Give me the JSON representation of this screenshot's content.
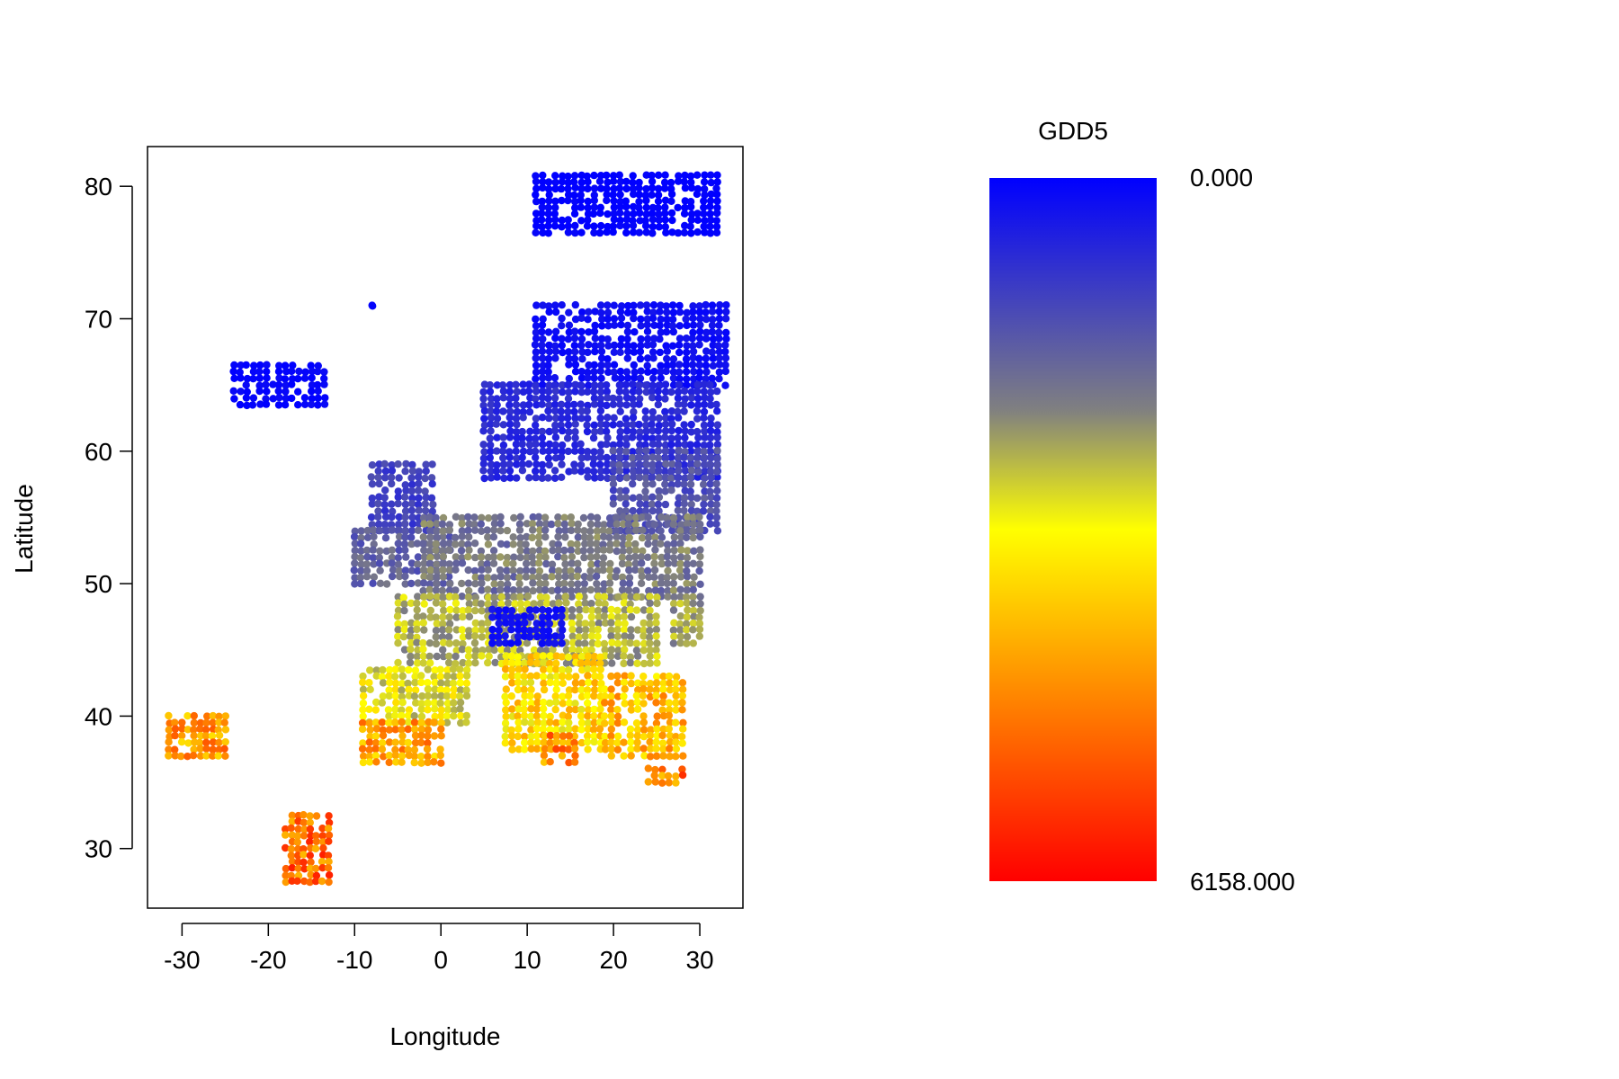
{
  "chart_data": [
    {
      "type": "scatter",
      "title": "",
      "xlabel": "Longitude",
      "ylabel": "Latitude",
      "xlim": [
        -34,
        35
      ],
      "ylim": [
        25.5,
        83
      ],
      "xticks": [
        -30,
        -20,
        -10,
        0,
        10,
        20,
        30
      ],
      "yticks": [
        30,
        40,
        50,
        60,
        70,
        80
      ],
      "grid": false,
      "legend": "none",
      "color_variable": "GDD5",
      "regions": [
        {
          "lon": [
            11,
            32
          ],
          "lat": [
            76.5,
            80.8
          ],
          "gdd5": 0
        },
        {
          "lon": [
            -24,
            -13.5
          ],
          "lat": [
            63.5,
            66.5
          ],
          "gdd5": 60
        },
        {
          "lon": [
            -8.6,
            -8.0
          ],
          "lat": [
            71,
            71
          ],
          "gdd5": 0
        },
        {
          "lon": [
            11,
            33
          ],
          "lat": [
            65,
            71
          ],
          "gdd5": 200
        },
        {
          "lon": [
            5,
            32
          ],
          "lat": [
            58,
            65
          ],
          "gdd5": 650
        },
        {
          "lon": [
            20,
            32
          ],
          "lat": [
            54,
            60
          ],
          "gdd5": 1300
        },
        {
          "lon": [
            -8,
            -1
          ],
          "lat": [
            54,
            59
          ],
          "gdd5": 1000
        },
        {
          "lon": [
            -10,
            1
          ],
          "lat": [
            50,
            54
          ],
          "gdd5": 1550
        },
        {
          "lon": [
            -2,
            30
          ],
          "lat": [
            49,
            55
          ],
          "gdd5": 1850
        },
        {
          "lon": [
            -5,
            25
          ],
          "lat": [
            44,
            49
          ],
          "gdd5": 2450
        },
        {
          "lon": [
            27,
            30
          ],
          "lat": [
            45.5,
            48.5
          ],
          "gdd5": 2300
        },
        {
          "lon": [
            6,
            14
          ],
          "lat": [
            45.5,
            48
          ],
          "gdd5": 250
        },
        {
          "lon": [
            -9,
            3
          ],
          "lat": [
            39.5,
            43.5
          ],
          "gdd5": 2900
        },
        {
          "lon": [
            -9,
            0
          ],
          "lat": [
            36.5,
            39.5
          ],
          "gdd5": 4200
        },
        {
          "lon": [
            7.5,
            18.5
          ],
          "lat": [
            37.5,
            44.5
          ],
          "gdd5": 3500
        },
        {
          "lon": [
            12,
            15.5
          ],
          "lat": [
            36.5,
            38.5
          ],
          "gdd5": 4500
        },
        {
          "lon": [
            19,
            28
          ],
          "lat": [
            37,
            43
          ],
          "gdd5": 3900
        },
        {
          "lon": [
            24,
            28
          ],
          "lat": [
            35,
            36
          ],
          "gdd5": 4700
        },
        {
          "lon": [
            -31.5,
            -25
          ],
          "lat": [
            37,
            40
          ],
          "gdd5": 4300
        },
        {
          "lon": [
            -18,
            -13
          ],
          "lat": [
            27.5,
            32.5
          ],
          "gdd5": 4900
        }
      ]
    },
    {
      "type": "heatmap",
      "title": "GDD5",
      "colormap": [
        "#0000ff",
        "#808080",
        "#ffff00",
        "#ff0000"
      ],
      "min_label": "0.000",
      "max_label": "6158.000",
      "range": [
        0,
        6158
      ]
    }
  ]
}
